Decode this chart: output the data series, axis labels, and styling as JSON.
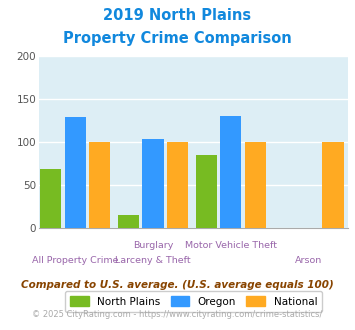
{
  "title_line1": "2019 North Plains",
  "title_line2": "Property Crime Comparison",
  "north_plains": [
    68,
    15,
    85,
    0
  ],
  "oregon": [
    129,
    103,
    130,
    0
  ],
  "national": [
    100,
    100,
    100,
    100
  ],
  "north_plains_color": "#77bb22",
  "oregon_color": "#3399ff",
  "national_color": "#ffaa22",
  "ylim": [
    0,
    200
  ],
  "yticks": [
    0,
    50,
    100,
    150,
    200
  ],
  "background_color": "#ddeef5",
  "title_color": "#1188dd",
  "xlabel_top_labels": [
    "",
    "Burglary",
    "Motor Vehicle Theft",
    ""
  ],
  "xlabel_bot_labels": [
    "All Property Crime",
    "Larceny & Theft",
    "",
    "Arson"
  ],
  "xlabel_color": "#9966aa",
  "legend_labels": [
    "North Plains",
    "Oregon",
    "National"
  ],
  "footnote1": "Compared to U.S. average. (U.S. average equals 100)",
  "footnote2": "© 2025 CityRating.com - https://www.cityrating.com/crime-statistics/",
  "footnote1_color": "#884400",
  "footnote2_color": "#aaaaaa",
  "footnote2_link_color": "#3399ff"
}
